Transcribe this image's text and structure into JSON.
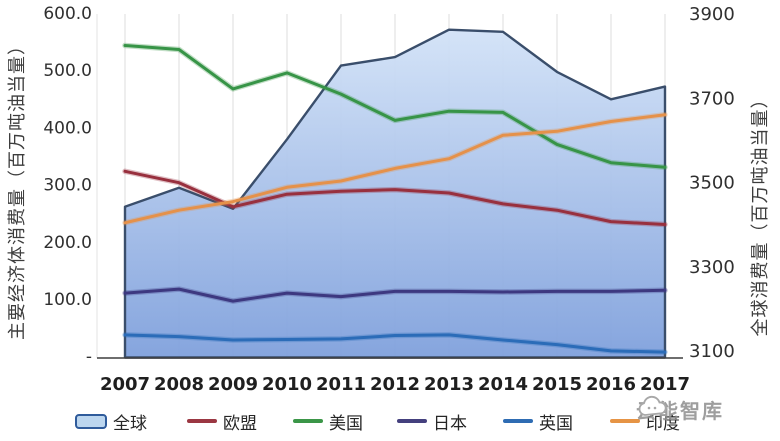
{
  "chart": {
    "left_axis": {
      "title": "主要经济体消费量（百万吨油当量）",
      "tick_labels": [
        "600.0",
        "500.0",
        "400.0",
        "300.0",
        "200.0",
        "100.0",
        "-"
      ],
      "tick_values": [
        600,
        500,
        400,
        300,
        200,
        100,
        0
      ],
      "min": 0,
      "max": 600
    },
    "right_axis": {
      "title": "全球消费量（百万吨油当量）",
      "tick_labels": [
        "3900",
        "3700",
        "3500",
        "3300",
        "3100"
      ],
      "tick_values": [
        3900,
        3700,
        3500,
        3300,
        3100
      ],
      "min": 3100,
      "max": 3900
    },
    "grid": "vertical-only"
  },
  "chart_data": {
    "type": "area",
    "subtype": "combo: stacked-look area (right axis) + line series (left axis)",
    "categories": [
      "2007",
      "2008",
      "2009",
      "2010",
      "2011",
      "2012",
      "2013",
      "2014",
      "2015",
      "2016",
      "2017"
    ],
    "legend_position": "bottom",
    "series": [
      {
        "id": "global",
        "name": "全球",
        "kind": "area",
        "axis": "right",
        "border_color": "#3A4E6B",
        "fill_top": "#D2E2F7",
        "fill_bottom": "#7FA0DC",
        "values": [
          3445,
          3490,
          3440,
          3605,
          3780,
          3800,
          3865,
          3860,
          3765,
          3700,
          3730
        ]
      },
      {
        "id": "eu",
        "name": "欧盟",
        "kind": "line",
        "axis": "left",
        "color": "#98303E",
        "values": [
          325,
          305,
          263,
          285,
          290,
          293,
          287,
          268,
          257,
          237,
          232
        ]
      },
      {
        "id": "us",
        "name": "美国",
        "kind": "line",
        "axis": "left",
        "color": "#379447",
        "values": [
          545,
          538,
          469,
          497,
          460,
          414,
          430,
          428,
          372,
          340,
          332
        ]
      },
      {
        "id": "japan",
        "name": "日本",
        "kind": "line",
        "axis": "left",
        "color": "#3D3880",
        "values": [
          112,
          119,
          98,
          112,
          106,
          115,
          115,
          114,
          115,
          115,
          117
        ]
      },
      {
        "id": "uk",
        "name": "英国",
        "kind": "line",
        "axis": "left",
        "color": "#2B6CB8",
        "values": [
          39,
          36,
          30,
          31,
          32,
          38,
          39,
          30,
          22,
          11,
          9
        ]
      },
      {
        "id": "india",
        "name": "印度",
        "kind": "line",
        "axis": "left",
        "color": "#E5914A",
        "values": [
          235,
          257,
          272,
          297,
          308,
          330,
          347,
          388,
          395,
          412,
          424
        ]
      }
    ],
    "xlabel": "",
    "ylabel_left": "主要经济体消费量（百万吨油当量）",
    "ylabel_right": "全球消费量（百万吨油当量）",
    "ylim_left": [
      0,
      600
    ],
    "ylim_right": [
      3100,
      3900
    ]
  },
  "legend": {
    "items": [
      {
        "label": "全球",
        "type": "area",
        "fill": "#BCD6EF",
        "border": "#2F5B9B"
      },
      {
        "label": "欧盟",
        "type": "line",
        "color": "#9B3742"
      },
      {
        "label": "美国",
        "type": "line",
        "color": "#3B9648"
      },
      {
        "label": "日本",
        "type": "line",
        "color": "#44407E"
      },
      {
        "label": "英国",
        "type": "line",
        "color": "#2E6CB3"
      },
      {
        "label": "印度",
        "type": "line",
        "color": "#E69445"
      }
    ]
  },
  "watermark": {
    "text": "云能智库"
  }
}
